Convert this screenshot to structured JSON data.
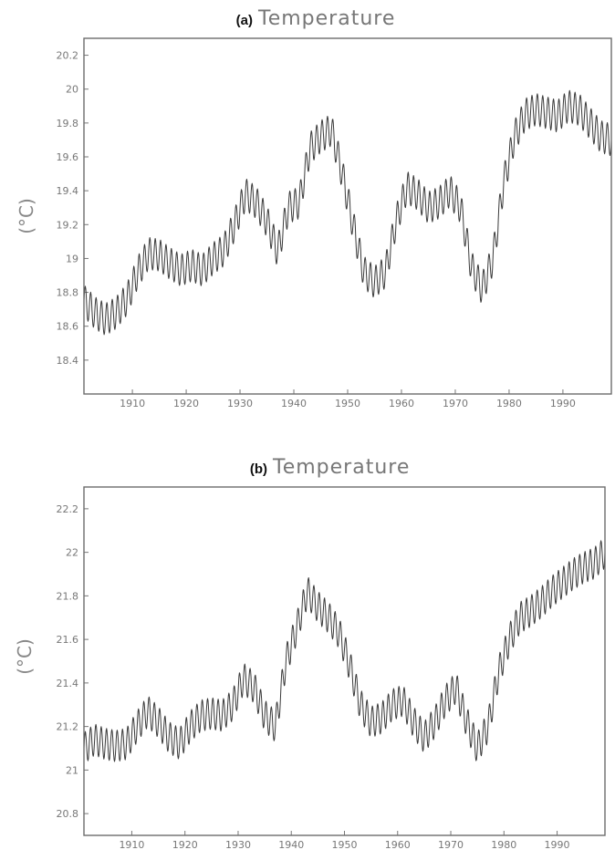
{
  "chart_data": [
    {
      "type": "line",
      "panel_label": "(a)",
      "title": "Temperature",
      "xlabel": "",
      "ylabel": "(°C)",
      "xlim": [
        1901,
        1999
      ],
      "ylim": [
        18.2,
        20.3
      ],
      "xticks": [
        1910,
        1920,
        1930,
        1940,
        1950,
        1960,
        1970,
        1980,
        1990
      ],
      "yticks": [
        18.4,
        18.6,
        18.8,
        19,
        19.2,
        19.4,
        19.6,
        19.8,
        20,
        20.2
      ],
      "xtick_labels": [
        "1910",
        "1920",
        "1930",
        "1940",
        "1950",
        "1960",
        "1970",
        "1980",
        "1990"
      ],
      "ytick_labels": [
        "18.4",
        "18.6",
        "18.8",
        "19",
        "19.2",
        "19.4",
        "19.6",
        "19.8",
        "20",
        "20.2"
      ],
      "series": [
        {
          "x": [
            1901,
            1903,
            1905,
            1907,
            1909,
            1911,
            1913,
            1915,
            1917,
            1919,
            1921,
            1923,
            1925,
            1927,
            1929,
            1931,
            1933,
            1935,
            1937,
            1939,
            1941,
            1943,
            1945,
            1947,
            1949,
            1951,
            1953,
            1955,
            1957,
            1959,
            1961,
            1963,
            1965,
            1967,
            1969,
            1971,
            1973,
            1975,
            1977,
            1979,
            1981,
            1983,
            1985,
            1987,
            1989,
            1991,
            1993,
            1995,
            1997,
            1999
          ],
          "y": [
            18.75,
            18.68,
            18.64,
            18.68,
            18.76,
            18.92,
            19.03,
            19.02,
            18.97,
            18.93,
            18.96,
            18.93,
            19.0,
            19.05,
            19.2,
            19.38,
            19.33,
            19.22,
            19.04,
            19.3,
            19.33,
            19.65,
            19.72,
            19.76,
            19.5,
            19.2,
            18.92,
            18.86,
            18.92,
            19.22,
            19.42,
            19.38,
            19.3,
            19.33,
            19.4,
            19.3,
            18.95,
            18.82,
            19.0,
            19.45,
            19.72,
            19.85,
            19.88,
            19.86,
            19.84,
            19.9,
            19.88,
            19.8,
            19.72,
            19.7
          ]
        }
      ]
    },
    {
      "type": "line",
      "panel_label": "(b)",
      "title": "Temperature",
      "xlabel": "",
      "ylabel": "(°C)",
      "xlim": [
        1901,
        1999
      ],
      "ylim": [
        20.7,
        22.3
      ],
      "xticks": [
        1910,
        1920,
        1930,
        1940,
        1950,
        1960,
        1970,
        1980,
        1990
      ],
      "yticks": [
        20.8,
        21,
        21.2,
        21.4,
        21.6,
        21.8,
        22,
        22.2
      ],
      "xtick_labels": [
        "1910",
        "1920",
        "1930",
        "1940",
        "1950",
        "1960",
        "1970",
        "1980",
        "1990"
      ],
      "ytick_labels": [
        "20.8",
        "21",
        "21.2",
        "21.4",
        "21.6",
        "21.8",
        "22",
        "22.2"
      ],
      "series": [
        {
          "x": [
            1901,
            1903,
            1905,
            1907,
            1909,
            1911,
            1913,
            1915,
            1917,
            1919,
            1921,
            1923,
            1925,
            1927,
            1929,
            1931,
            1933,
            1935,
            1937,
            1939,
            1941,
            1943,
            1945,
            1947,
            1949,
            1951,
            1953,
            1955,
            1957,
            1959,
            1961,
            1963,
            1965,
            1967,
            1969,
            1971,
            1973,
            1975,
            1977,
            1979,
            1981,
            1983,
            1985,
            1987,
            1989,
            1991,
            1993,
            1995,
            1997,
            1999
          ],
          "y": [
            21.1,
            21.14,
            21.12,
            21.11,
            21.12,
            21.2,
            21.27,
            21.22,
            21.15,
            21.12,
            21.2,
            21.25,
            21.26,
            21.25,
            21.3,
            21.42,
            21.38,
            21.25,
            21.2,
            21.5,
            21.65,
            21.82,
            21.75,
            21.7,
            21.63,
            21.48,
            21.3,
            21.22,
            21.24,
            21.3,
            21.32,
            21.22,
            21.15,
            21.22,
            21.32,
            21.38,
            21.22,
            21.1,
            21.2,
            21.45,
            21.6,
            21.7,
            21.73,
            21.77,
            21.82,
            21.86,
            21.9,
            21.93,
            21.95,
            22.0
          ]
        }
      ]
    }
  ]
}
